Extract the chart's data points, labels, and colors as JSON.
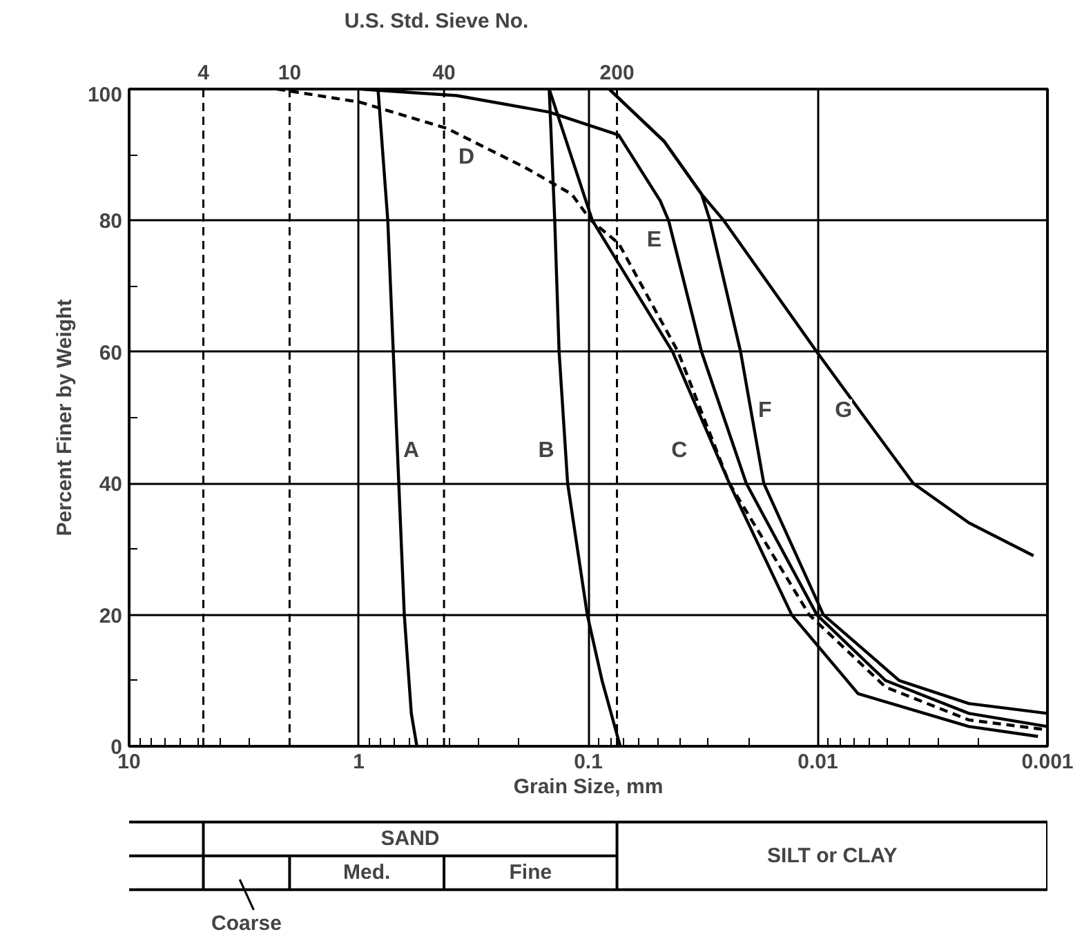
{
  "chart_data": {
    "type": "line",
    "xlabel": "Grain Size, mm",
    "ylabel": "Percent Finer by Weight",
    "log": "x",
    "grid": true,
    "marker": "none",
    "xlim": [
      10,
      0.001
    ],
    "xticks": [
      {
        "value": 10,
        "label": "10"
      },
      {
        "value": 1,
        "label": "1"
      },
      {
        "value": 0.1,
        "label": "0.1"
      },
      {
        "value": 0.01,
        "label": "0.01"
      },
      {
        "value": 0.001,
        "label": "0.001"
      }
    ],
    "ylim": [
      0,
      100
    ],
    "yticks": [
      0,
      20,
      40,
      60,
      80,
      100
    ],
    "ref_lines": [
      {
        "axis": "x",
        "value": 4.75,
        "line_style": "dashed"
      },
      {
        "axis": "x",
        "value": 2,
        "line_style": "dashed"
      },
      {
        "axis": "x",
        "value": 0.425,
        "line_style": "dashed"
      },
      {
        "axis": "x",
        "value": 0.075,
        "line_style": "dashed"
      }
    ],
    "series": [
      {
        "name": "A",
        "color": "#000000",
        "x": [
          0.824,
          0.747,
          0.707,
          0.669,
          0.633,
          0.59,
          0.558
        ],
        "values": [
          100,
          80,
          60,
          40,
          20,
          5,
          0
        ]
      },
      {
        "name": "B",
        "color": "#000000",
        "x": [
          0.148,
          0.14,
          0.134,
          0.123,
          0.101,
          0.0871,
          0.0726
        ],
        "values": [
          100,
          80,
          60,
          40,
          20,
          10,
          0
        ]
      },
      {
        "name": "C",
        "color": "#000000",
        "x": [
          0.148,
          0.096,
          0.0429,
          0.0243,
          0.013,
          0.00668,
          0.0022,
          0.0011
        ],
        "values": [
          100,
          80,
          60,
          40,
          20,
          8,
          3,
          1.5
        ]
      },
      {
        "name": "D",
        "color": "#000000",
        "line_style": "dashed",
        "x": [
          2.27,
          0.986,
          0.412,
          0.187,
          0.118,
          0.0973,
          0.0737,
          0.0406,
          0.0243,
          0.0109,
          0.00507,
          0.0022,
          0.001
        ],
        "values": [
          100,
          98,
          94,
          88,
          84,
          80,
          76.5,
          60,
          40,
          20,
          9,
          4,
          2.5
        ]
      },
      {
        "name": "E",
        "color": "#000000",
        "x": [
          0.986,
          0.3735,
          0.148,
          0.0737,
          0.0486,
          0.0447,
          0.0321,
          0.0205,
          0.0101,
          0.00507,
          0.0022,
          0.001
        ],
        "values": [
          100,
          99,
          96.5,
          93,
          83,
          80,
          60,
          40,
          20,
          10,
          5,
          3
        ]
      },
      {
        "name": "F",
        "color": "#000000",
        "x": [
          0.0812,
          0.0466,
          0.0321,
          0.0295,
          0.0217,
          0.0172,
          0.00946,
          0.00442,
          0.0022,
          0.001
        ],
        "values": [
          100,
          92,
          84,
          80,
          60,
          40,
          20,
          10,
          6.5,
          5
        ]
      },
      {
        "name": "G",
        "color": "#000000",
        "x": [
          0.0812,
          0.0466,
          0.0321,
          0.0257,
          0.0101,
          0.00624,
          0.00384,
          0.0022,
          0.00115
        ],
        "values": [
          100,
          92,
          84,
          80,
          60,
          50,
          40,
          34,
          29
        ]
      }
    ],
    "annotations": [
      "U.S. Std. Sieve No.",
      {
        "text": "4",
        "x": 4.75,
        "y": 100
      },
      {
        "text": "10",
        "x": 2,
        "y": 100
      },
      {
        "text": "40",
        "x": 0.425,
        "y": 100
      },
      {
        "text": "200",
        "x": 0.075,
        "y": 100
      },
      "SAND",
      "Med.",
      "Fine",
      "Coarse",
      "SILT or CLAY"
    ]
  }
}
